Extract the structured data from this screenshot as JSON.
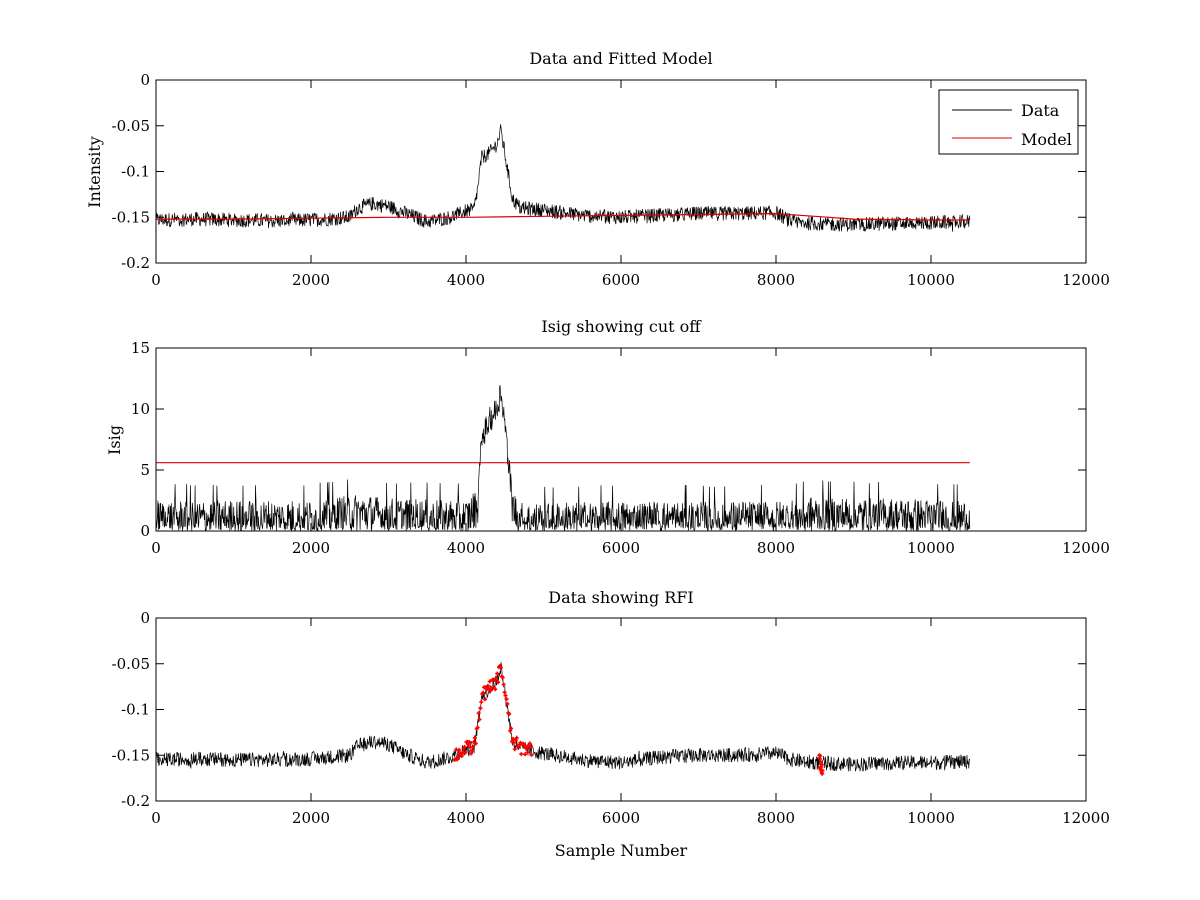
{
  "figure": {
    "background": "#ffffff",
    "colors": {
      "data": "#000000",
      "model": "#e00000",
      "rfi": "#ff0000",
      "axes": "#000000"
    }
  },
  "chart_data": [
    {
      "type": "line",
      "title": "Data and Fitted Model",
      "xlabel": "",
      "ylabel": "Intensity",
      "xlim": [
        0,
        12000
      ],
      "ylim": [
        -0.2,
        0
      ],
      "xticks": [
        "0",
        "2000",
        "4000",
        "6000",
        "8000",
        "10000",
        "12000"
      ],
      "yticks": [
        "-0.2",
        "-0.15",
        "-0.1",
        "-0.05",
        "0"
      ],
      "legend": {
        "position": "top-right",
        "entries": [
          "Data",
          "Model"
        ]
      },
      "series": [
        {
          "name": "Data",
          "color": "#000000",
          "x": [
            0,
            500,
            1000,
            1500,
            2000,
            2500,
            2600,
            2800,
            3000,
            3200,
            3500,
            3800,
            4000,
            4100,
            4150,
            4200,
            4300,
            4400,
            4450,
            4500,
            4600,
            4700,
            5000,
            5500,
            6000,
            6500,
            7000,
            7500,
            8000,
            8200,
            8500,
            9000,
            9500,
            10000,
            10500
          ],
          "y": [
            -0.153,
            -0.152,
            -0.153,
            -0.154,
            -0.153,
            -0.15,
            -0.14,
            -0.135,
            -0.138,
            -0.145,
            -0.155,
            -0.15,
            -0.143,
            -0.142,
            -0.12,
            -0.085,
            -0.08,
            -0.07,
            -0.055,
            -0.08,
            -0.13,
            -0.14,
            -0.142,
            -0.148,
            -0.15,
            -0.148,
            -0.146,
            -0.146,
            -0.145,
            -0.155,
            -0.157,
            -0.158,
            -0.157,
            -0.156,
            -0.155
          ],
          "noise": 0.008
        },
        {
          "name": "Model",
          "color": "#e00000",
          "x": [
            0,
            1000,
            2000,
            3000,
            4000,
            5000,
            6000,
            7000,
            8000,
            8500,
            9000,
            10000,
            10500
          ],
          "y": [
            -0.152,
            -0.152,
            -0.151,
            -0.15,
            -0.15,
            -0.149,
            -0.148,
            -0.147,
            -0.146,
            -0.149,
            -0.152,
            -0.153,
            -0.153
          ]
        }
      ]
    },
    {
      "type": "line",
      "title": "Isig showing cut off",
      "xlabel": "",
      "ylabel": "Isig",
      "xlim": [
        0,
        12000
      ],
      "ylim": [
        0,
        15
      ],
      "xticks": [
        "0",
        "2000",
        "4000",
        "6000",
        "8000",
        "10000",
        "12000"
      ],
      "yticks": [
        "0",
        "5",
        "10",
        "15"
      ],
      "series": [
        {
          "name": "Isig",
          "color": "#000000",
          "x": [
            0,
            2000,
            2600,
            3000,
            4000,
            4150,
            4200,
            4300,
            4400,
            4450,
            4500,
            4600,
            4700,
            6000,
            8000,
            8500,
            10500
          ],
          "y": [
            1.0,
            1.0,
            1.5,
            1.2,
            1.0,
            2.0,
            7.5,
            9.0,
            10.0,
            11.5,
            9.0,
            2.0,
            0.8,
            0.9,
            0.9,
            1.3,
            1.0
          ],
          "noise": 1.6
        },
        {
          "name": "cut off",
          "color": "#e00000",
          "x": [
            0,
            10500
          ],
          "y": [
            5.6,
            5.6
          ]
        }
      ]
    },
    {
      "type": "line",
      "title": "Data showing RFI",
      "xlabel": "Sample Number",
      "ylabel": "",
      "xlim": [
        0,
        12000
      ],
      "ylim": [
        -0.2,
        0
      ],
      "xticks": [
        "0",
        "2000",
        "4000",
        "6000",
        "8000",
        "10000",
        "12000"
      ],
      "yticks": [
        "-0.2",
        "-0.15",
        "-0.1",
        "-0.05",
        "0"
      ],
      "series": [
        {
          "name": "Data",
          "color": "#000000",
          "x": [
            0,
            500,
            1000,
            1500,
            2000,
            2500,
            2600,
            2800,
            3000,
            3200,
            3500,
            3800,
            4000,
            4100,
            4150,
            4200,
            4300,
            4400,
            4450,
            4500,
            4600,
            4700,
            5000,
            5500,
            6000,
            6500,
            7000,
            7500,
            8000,
            8200,
            8500,
            9000,
            9500,
            10000,
            10500
          ],
          "y": [
            -0.155,
            -0.154,
            -0.155,
            -0.155,
            -0.154,
            -0.15,
            -0.14,
            -0.135,
            -0.138,
            -0.148,
            -0.158,
            -0.152,
            -0.143,
            -0.142,
            -0.12,
            -0.085,
            -0.078,
            -0.068,
            -0.052,
            -0.08,
            -0.135,
            -0.142,
            -0.148,
            -0.155,
            -0.158,
            -0.152,
            -0.15,
            -0.15,
            -0.148,
            -0.155,
            -0.158,
            -0.16,
            -0.158,
            -0.158,
            -0.157
          ],
          "noise": 0.008
        },
        {
          "name": "RFI",
          "color": "#ff0000",
          "marker": "+",
          "segments": [
            {
              "x": [
                3850,
                4000,
                4100,
                4150,
                4200,
                4300,
                4400,
                4450,
                4500,
                4600,
                4700,
                4850
              ],
              "y": [
                -0.15,
                -0.143,
                -0.142,
                -0.12,
                -0.085,
                -0.078,
                -0.068,
                -0.052,
                -0.08,
                -0.135,
                -0.142,
                -0.142
              ]
            },
            {
              "x": [
                8560,
                8580,
                8600
              ],
              "y": [
                -0.155,
                -0.16,
                -0.165
              ]
            }
          ]
        }
      ]
    }
  ]
}
